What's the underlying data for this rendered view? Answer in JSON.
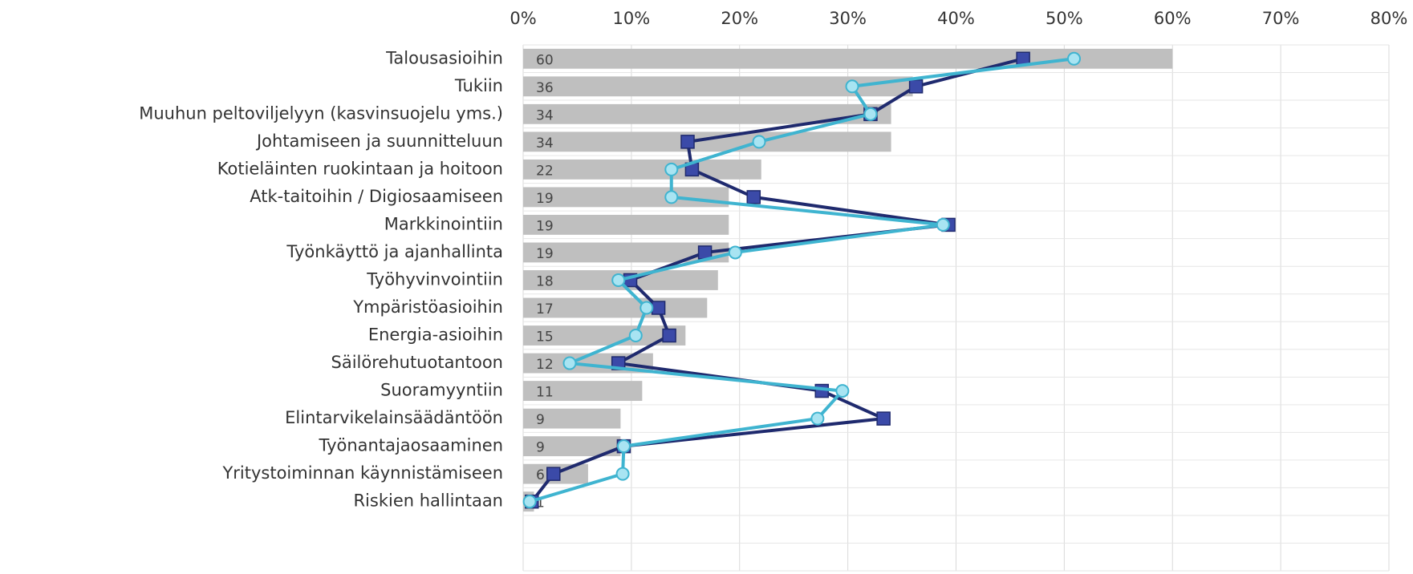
{
  "chart_data": {
    "type": "bar",
    "categories": [
      "Talousasioihin",
      "Tukiin",
      "Muuhun peltoviljelyyn (kasvinsuojelu yms.)",
      "Johtamiseen ja suunnitteluun",
      "Kotieläinten ruokintaan ja hoitoon",
      "Atk-taitoihin / Digiosaamiseen",
      "Markkinointiin",
      "Työnkäyttö ja ajanhallinta",
      "Työhyvinvointiin",
      "Ympäristöasioihin",
      "Energia-asioihin",
      "Säilörehutuotantoon",
      "Suoramyyntiin",
      "Elintarvikelainsäädäntöön",
      "Työnantajaosaaminen",
      "Yritystoiminnan käynnistämiseen",
      "Riskien hallintaan",
      null,
      null
    ],
    "values": [
      60,
      36,
      34,
      34,
      22,
      19,
      19,
      19,
      18,
      17,
      15,
      12,
      11,
      9,
      9,
      6,
      1,
      null,
      null
    ],
    "color": "#bfbfbf",
    "series": [
      {
        "type": "line",
        "color": "#1f2a6e",
        "marker_color": "#3b4aa8",
        "marker": "square",
        "values": [
          46.2,
          36.3,
          32.1,
          15.2,
          15.6,
          21.3,
          39.3,
          16.8,
          9.9,
          12.5,
          13.5,
          8.8,
          27.6,
          33.3,
          9.3,
          2.8,
          0.8,
          null,
          null
        ]
      },
      {
        "type": "line",
        "color": "#3fb4d0",
        "marker_color": "#a8e4f2",
        "marker": "circle",
        "values": [
          50.9,
          30.4,
          32.1,
          21.8,
          13.7,
          13.7,
          38.8,
          19.6,
          8.8,
          11.4,
          10.4,
          4.3,
          29.5,
          27.2,
          9.3,
          9.2,
          0.6,
          null,
          null
        ]
      }
    ],
    "xlim": [
      0,
      80
    ],
    "xticks": [
      {
        "value": 0,
        "label": "0%"
      },
      {
        "value": 10,
        "label": "10%"
      },
      {
        "value": 20,
        "label": "20%"
      },
      {
        "value": 30,
        "label": "30%"
      },
      {
        "value": 40,
        "label": "40%"
      },
      {
        "value": 50,
        "label": "50%"
      },
      {
        "value": 60,
        "label": "60%"
      },
      {
        "value": 70,
        "label": "70%"
      },
      {
        "value": 80,
        "label": "80%"
      }
    ],
    "grid": true
  }
}
